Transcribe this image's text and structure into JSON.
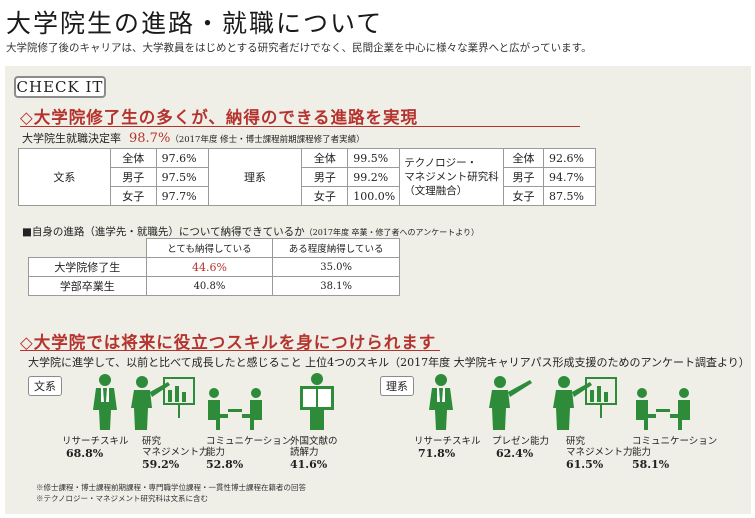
{
  "header": {
    "title": "大学院生の進路・就職について",
    "subtitle": "大学院修了後のキャリアは、大学教員をはじめとする研究者だけでなく、民間企業を中心に様々な業界へと広がっています。"
  },
  "check_label": "CHECK IT",
  "section1": {
    "heading": "◇大学院修了生の多くが、納得のできる進路を実現",
    "rate_label": "大学院生就職決定率",
    "rate_value": "98.7%",
    "rate_note": "（2017年度 修士・博士課程前期課程修了者実績）",
    "groups": [
      {
        "name": "文系",
        "rows": [
          [
            "全体",
            "97.6%"
          ],
          [
            "男子",
            "97.5%"
          ],
          [
            "女子",
            "97.7%"
          ]
        ]
      },
      {
        "name": "理系",
        "rows": [
          [
            "全体",
            "99.5%"
          ],
          [
            "男子",
            "99.2%"
          ],
          [
            "女子",
            "100.0%"
          ]
        ]
      },
      {
        "name_l1": "テクノロジー・",
        "name_l2": "マネジメント研究科",
        "name_l3": "（文理融合）",
        "rows": [
          [
            "全体",
            "92.6%"
          ],
          [
            "男子",
            "94.7%"
          ],
          [
            "女子",
            "87.5%"
          ]
        ]
      }
    ],
    "q_label": "■自身の進路（進学先・就職先）について納得できているか",
    "q_note": "（2017年度 卒業・修了者へのアンケートより）",
    "q_headers": [
      "とても納得している",
      "ある程度納得している"
    ],
    "q_rows": [
      {
        "name": "大学院修了生",
        "a": "44.6%",
        "b": "35.0%"
      },
      {
        "name": "学部卒業生",
        "a": "40.8%",
        "b": "38.1%"
      }
    ]
  },
  "section2": {
    "heading": "◇大学院では将来に役立つスキルを身につけられます",
    "survey": "大学院に進学して、以前と比べて成長したと感じること 上位4つのスキル（2017年度 大学院キャリアパス形成支援のためのアンケート調査より）",
    "bunkei_label": "文系",
    "rikei_label": "理系",
    "bunkei": [
      {
        "label1": "リサーチスキル",
        "label2": "",
        "pct": "68.8%",
        "icon": "researcher-icon"
      },
      {
        "label1": "研究",
        "label2": "マネジメント力",
        "pct": "59.2%",
        "icon": "presenter-chart-icon"
      },
      {
        "label1": "コミュニケーション",
        "label2": "能力",
        "pct": "52.8%",
        "icon": "conversation-icon"
      },
      {
        "label1": "外国文献の",
        "label2": "読解力",
        "pct": "41.6%",
        "icon": "reading-icon"
      }
    ],
    "rikei": [
      {
        "label1": "リサーチスキル",
        "label2": "",
        "pct": "71.8%",
        "icon": "researcher-icon"
      },
      {
        "label1": "プレゼン能力",
        "label2": "",
        "pct": "62.4%",
        "icon": "presenter-icon"
      },
      {
        "label1": "研究",
        "label2": "マネジメント力",
        "pct": "61.5%",
        "icon": "presenter-chart-icon"
      },
      {
        "label1": "コミュニケーション",
        "label2": "能力",
        "pct": "58.1%",
        "icon": "conversation-icon"
      }
    ],
    "footnotes": [
      "※修士課程・博士課程前期課程・専門職学位課程・一貫性博士課程在籍者の回答",
      "※テクノロジー・マネジメント研究科は文系に含む"
    ]
  },
  "colors": {
    "accent": "#b5332d",
    "icon_green": "#2e8b3a",
    "panel": "#efefe8"
  }
}
